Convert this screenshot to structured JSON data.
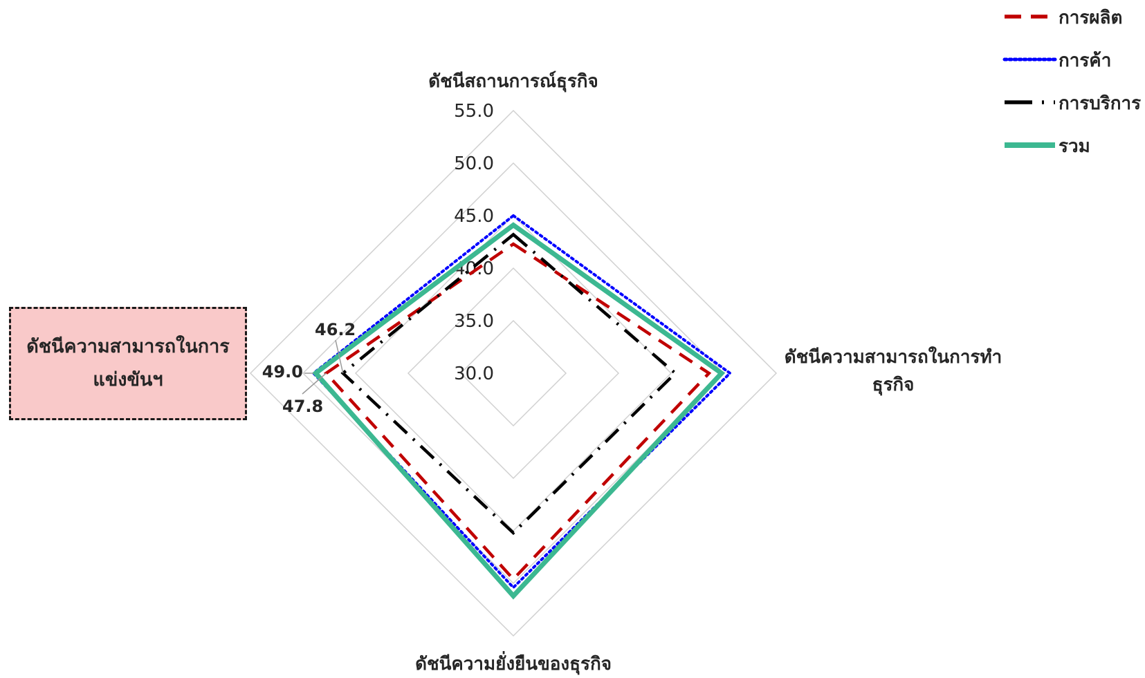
{
  "chart_data": {
    "type": "radar",
    "axes": [
      "ดัชนีสถานการณ์ธุรกิจ",
      "ดัชนีความสามารถในการทำธุรกิจ",
      "ดัชนีความยั่งยืนของธุรกิจ",
      "ดัชนีความสามารถในการแข่งขันฯ"
    ],
    "axis_label_lines": [
      [
        "ดัชนีสถานการณ์ธุรกิจ"
      ],
      [
        "ดัชนีความสามารถในการทำ",
        "ธุรกิจ"
      ],
      [
        "ดัชนีความยั่งยืนของธุรกิจ"
      ],
      []
    ],
    "r_ticks": [
      "30.0",
      "35.0",
      "40.0",
      "45.0",
      "50.0",
      "55.0"
    ],
    "r_range": [
      30,
      55
    ],
    "grid": true,
    "legend_position": "top-right",
    "series": [
      {
        "name": "การผลิต",
        "color": "#c00000",
        "style": "dash",
        "values": [
          42.3,
          48.6,
          49.6,
          47.8
        ]
      },
      {
        "name": "การค้า",
        "color": "#0000ff",
        "style": "dot",
        "values": [
          45.0,
          50.6,
          50.4,
          49.0
        ]
      },
      {
        "name": "การบริการ",
        "color": "#000000",
        "style": "dashdot",
        "values": [
          43.2,
          45.4,
          45.2,
          46.2
        ]
      },
      {
        "name": "รวม",
        "color": "#3cb891",
        "style": "solid",
        "values": [
          44.1,
          49.8,
          51.2,
          48.8
        ]
      }
    ],
    "data_labels": [
      "46.2",
      "49.0",
      "47.8"
    ]
  },
  "callout": {
    "line1": "ดัชนีความสามารถในการ",
    "line2": "แข่งขันฯ"
  }
}
